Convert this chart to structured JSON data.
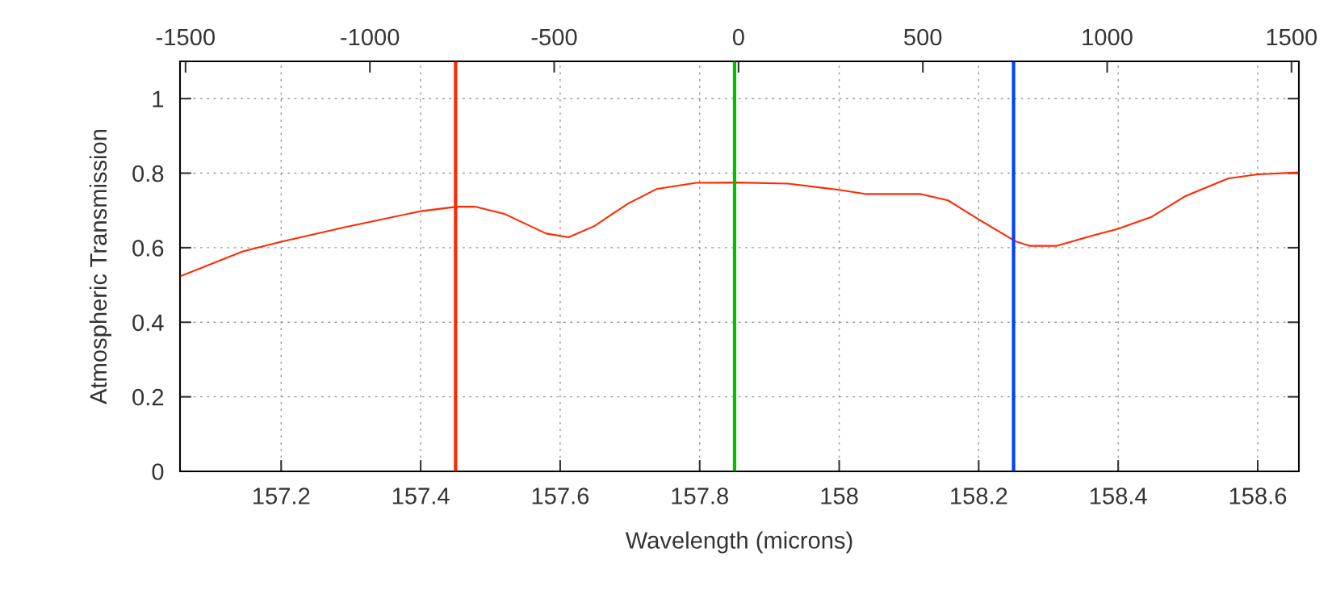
{
  "chart_data": {
    "type": "line",
    "xlabel": "Wavelength (microns)",
    "ylabel": "Atmospheric Transmission",
    "x": [
      157.055,
      157.145,
      157.2,
      157.294,
      157.4,
      157.452,
      157.478,
      157.521,
      157.58,
      157.612,
      157.649,
      157.697,
      157.739,
      157.795,
      157.853,
      157.927,
      158.0,
      158.039,
      158.117,
      158.156,
      158.2,
      158.253,
      158.273,
      158.312,
      158.368,
      158.399,
      158.447,
      158.497,
      158.558,
      158.6,
      158.659
    ],
    "series": [
      {
        "color": "#ff2a00",
        "values": [
          0.523,
          0.59,
          0.616,
          0.656,
          0.698,
          0.71,
          0.71,
          0.69,
          0.638,
          0.628,
          0.658,
          0.718,
          0.758,
          0.774,
          0.775,
          0.772,
          0.755,
          0.744,
          0.744,
          0.727,
          0.676,
          0.617,
          0.605,
          0.605,
          0.635,
          0.65,
          0.682,
          0.739,
          0.786,
          0.797,
          0.802
        ]
      }
    ],
    "xlim": [
      157.055,
      158.659
    ],
    "xticks": [
      157.2,
      157.4,
      157.6,
      157.8,
      158,
      158.2,
      158.4,
      158.6
    ],
    "ylim": [
      0,
      1.1
    ],
    "yticks": [
      0,
      0.2,
      0.4,
      0.6,
      0.8,
      1
    ],
    "x2lim": [
      -1515,
      1520
    ],
    "x2ticks": [
      -1500,
      -1000,
      -500,
      0,
      500,
      1000,
      1500
    ],
    "ref_lines": [
      {
        "axis": "x",
        "value": 157.45,
        "color": "#ff2a00"
      },
      {
        "axis": "x",
        "value": 157.85,
        "color": "#00c000"
      },
      {
        "axis": "x",
        "value": 158.25,
        "color": "#0040ff"
      }
    ],
    "grid": true,
    "marker": "none",
    "line_style": "solid",
    "legend": false
  }
}
